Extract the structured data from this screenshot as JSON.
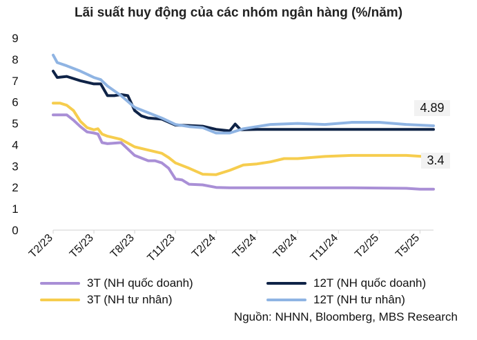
{
  "chart_data": {
    "type": "line",
    "title": "Lãi suất huy động của các nhóm ngân hàng (%/năm)",
    "xlabel": "",
    "ylabel": "",
    "ylim": [
      0,
      9
    ],
    "yticks": [
      "0",
      "1",
      "2",
      "3",
      "4",
      "5",
      "6",
      "7",
      "8",
      "9"
    ],
    "xticks": [
      "T2/23",
      "T5/23",
      "T8/23",
      "T11/23",
      "T2/24",
      "T5/24",
      "T8/24",
      "T11/24",
      "T2/25",
      "T5/25"
    ],
    "grid": false,
    "legend_position": "bottom",
    "series": [
      {
        "name": "3T (NH quốc doanh)",
        "color": "#a98fd6",
        "points": [
          [
            0,
            5.4
          ],
          [
            0.5,
            5.4
          ],
          [
            1,
            5.4
          ],
          [
            1.5,
            5.15
          ],
          [
            2,
            4.85
          ],
          [
            2.5,
            4.6
          ],
          [
            3,
            4.55
          ],
          [
            3.3,
            4.5
          ],
          [
            3.6,
            4.1
          ],
          [
            4,
            4.05
          ],
          [
            5,
            4.1
          ],
          [
            6,
            3.5
          ],
          [
            7,
            3.25
          ],
          [
            7.5,
            3.25
          ],
          [
            8,
            3.15
          ],
          [
            8.5,
            2.9
          ],
          [
            9,
            2.4
          ],
          [
            9.5,
            2.35
          ],
          [
            10,
            2.15
          ],
          [
            11,
            2.12
          ],
          [
            12,
            2.0
          ],
          [
            13,
            1.98
          ],
          [
            14,
            1.98
          ],
          [
            18,
            1.98
          ],
          [
            22,
            1.98
          ],
          [
            26,
            1.96
          ],
          [
            27,
            1.92
          ],
          [
            28,
            1.92
          ]
        ]
      },
      {
        "name": "12T (NH quốc doanh)",
        "color": "#0f2347",
        "points": [
          [
            0,
            7.45
          ],
          [
            0.3,
            7.15
          ],
          [
            1,
            7.2
          ],
          [
            2,
            7.0
          ],
          [
            3,
            6.85
          ],
          [
            3.5,
            6.85
          ],
          [
            4,
            6.3
          ],
          [
            4.5,
            6.3
          ],
          [
            5,
            6.35
          ],
          [
            5.5,
            6.3
          ],
          [
            6,
            5.6
          ],
          [
            6.5,
            5.35
          ],
          [
            7,
            5.25
          ],
          [
            8,
            5.2
          ],
          [
            9,
            4.92
          ],
          [
            10,
            4.9
          ],
          [
            11,
            4.87
          ],
          [
            12,
            4.72
          ],
          [
            13,
            4.65
          ],
          [
            13.4,
            4.97
          ],
          [
            13.8,
            4.7
          ],
          [
            15,
            4.72
          ],
          [
            16,
            4.72
          ],
          [
            20,
            4.72
          ],
          [
            24,
            4.72
          ],
          [
            28,
            4.72
          ]
        ]
      },
      {
        "name": "3T (NH tư nhân)",
        "color": "#f6cd4e",
        "points": [
          [
            0,
            5.95
          ],
          [
            0.5,
            5.95
          ],
          [
            1,
            5.85
          ],
          [
            1.5,
            5.6
          ],
          [
            2,
            5.1
          ],
          [
            2.5,
            4.8
          ],
          [
            3,
            4.7
          ],
          [
            3.3,
            4.75
          ],
          [
            3.6,
            4.5
          ],
          [
            4,
            4.4
          ],
          [
            5,
            4.25
          ],
          [
            6,
            3.9
          ],
          [
            7,
            3.75
          ],
          [
            8,
            3.6
          ],
          [
            8.5,
            3.4
          ],
          [
            9,
            3.15
          ],
          [
            10,
            2.9
          ],
          [
            11,
            2.62
          ],
          [
            12,
            2.6
          ],
          [
            13,
            2.8
          ],
          [
            14,
            3.05
          ],
          [
            15,
            3.1
          ],
          [
            16,
            3.2
          ],
          [
            17,
            3.35
          ],
          [
            18,
            3.35
          ],
          [
            20,
            3.45
          ],
          [
            22,
            3.5
          ],
          [
            24,
            3.5
          ],
          [
            26,
            3.5
          ],
          [
            28,
            3.42
          ]
        ]
      },
      {
        "name": "12T (NH tư nhân)",
        "color": "#8fb4e3",
        "points": [
          [
            0,
            8.2
          ],
          [
            0.3,
            7.85
          ],
          [
            1,
            7.7
          ],
          [
            2,
            7.45
          ],
          [
            3,
            7.15
          ],
          [
            3.5,
            7.05
          ],
          [
            4,
            6.75
          ],
          [
            5,
            6.3
          ],
          [
            6,
            5.75
          ],
          [
            7,
            5.5
          ],
          [
            8,
            5.25
          ],
          [
            9,
            4.95
          ],
          [
            10,
            4.85
          ],
          [
            11,
            4.8
          ],
          [
            12,
            4.55
          ],
          [
            13,
            4.55
          ],
          [
            14,
            4.75
          ],
          [
            15,
            4.85
          ],
          [
            16,
            4.95
          ],
          [
            18,
            5.0
          ],
          [
            20,
            4.95
          ],
          [
            22,
            5.05
          ],
          [
            24,
            5.05
          ],
          [
            26,
            4.95
          ],
          [
            28,
            4.89
          ]
        ]
      }
    ],
    "annotations": [
      "4.89",
      "3.4"
    ]
  },
  "source_note": "Nguồn: NHNN, Bloomberg, MBS Research"
}
